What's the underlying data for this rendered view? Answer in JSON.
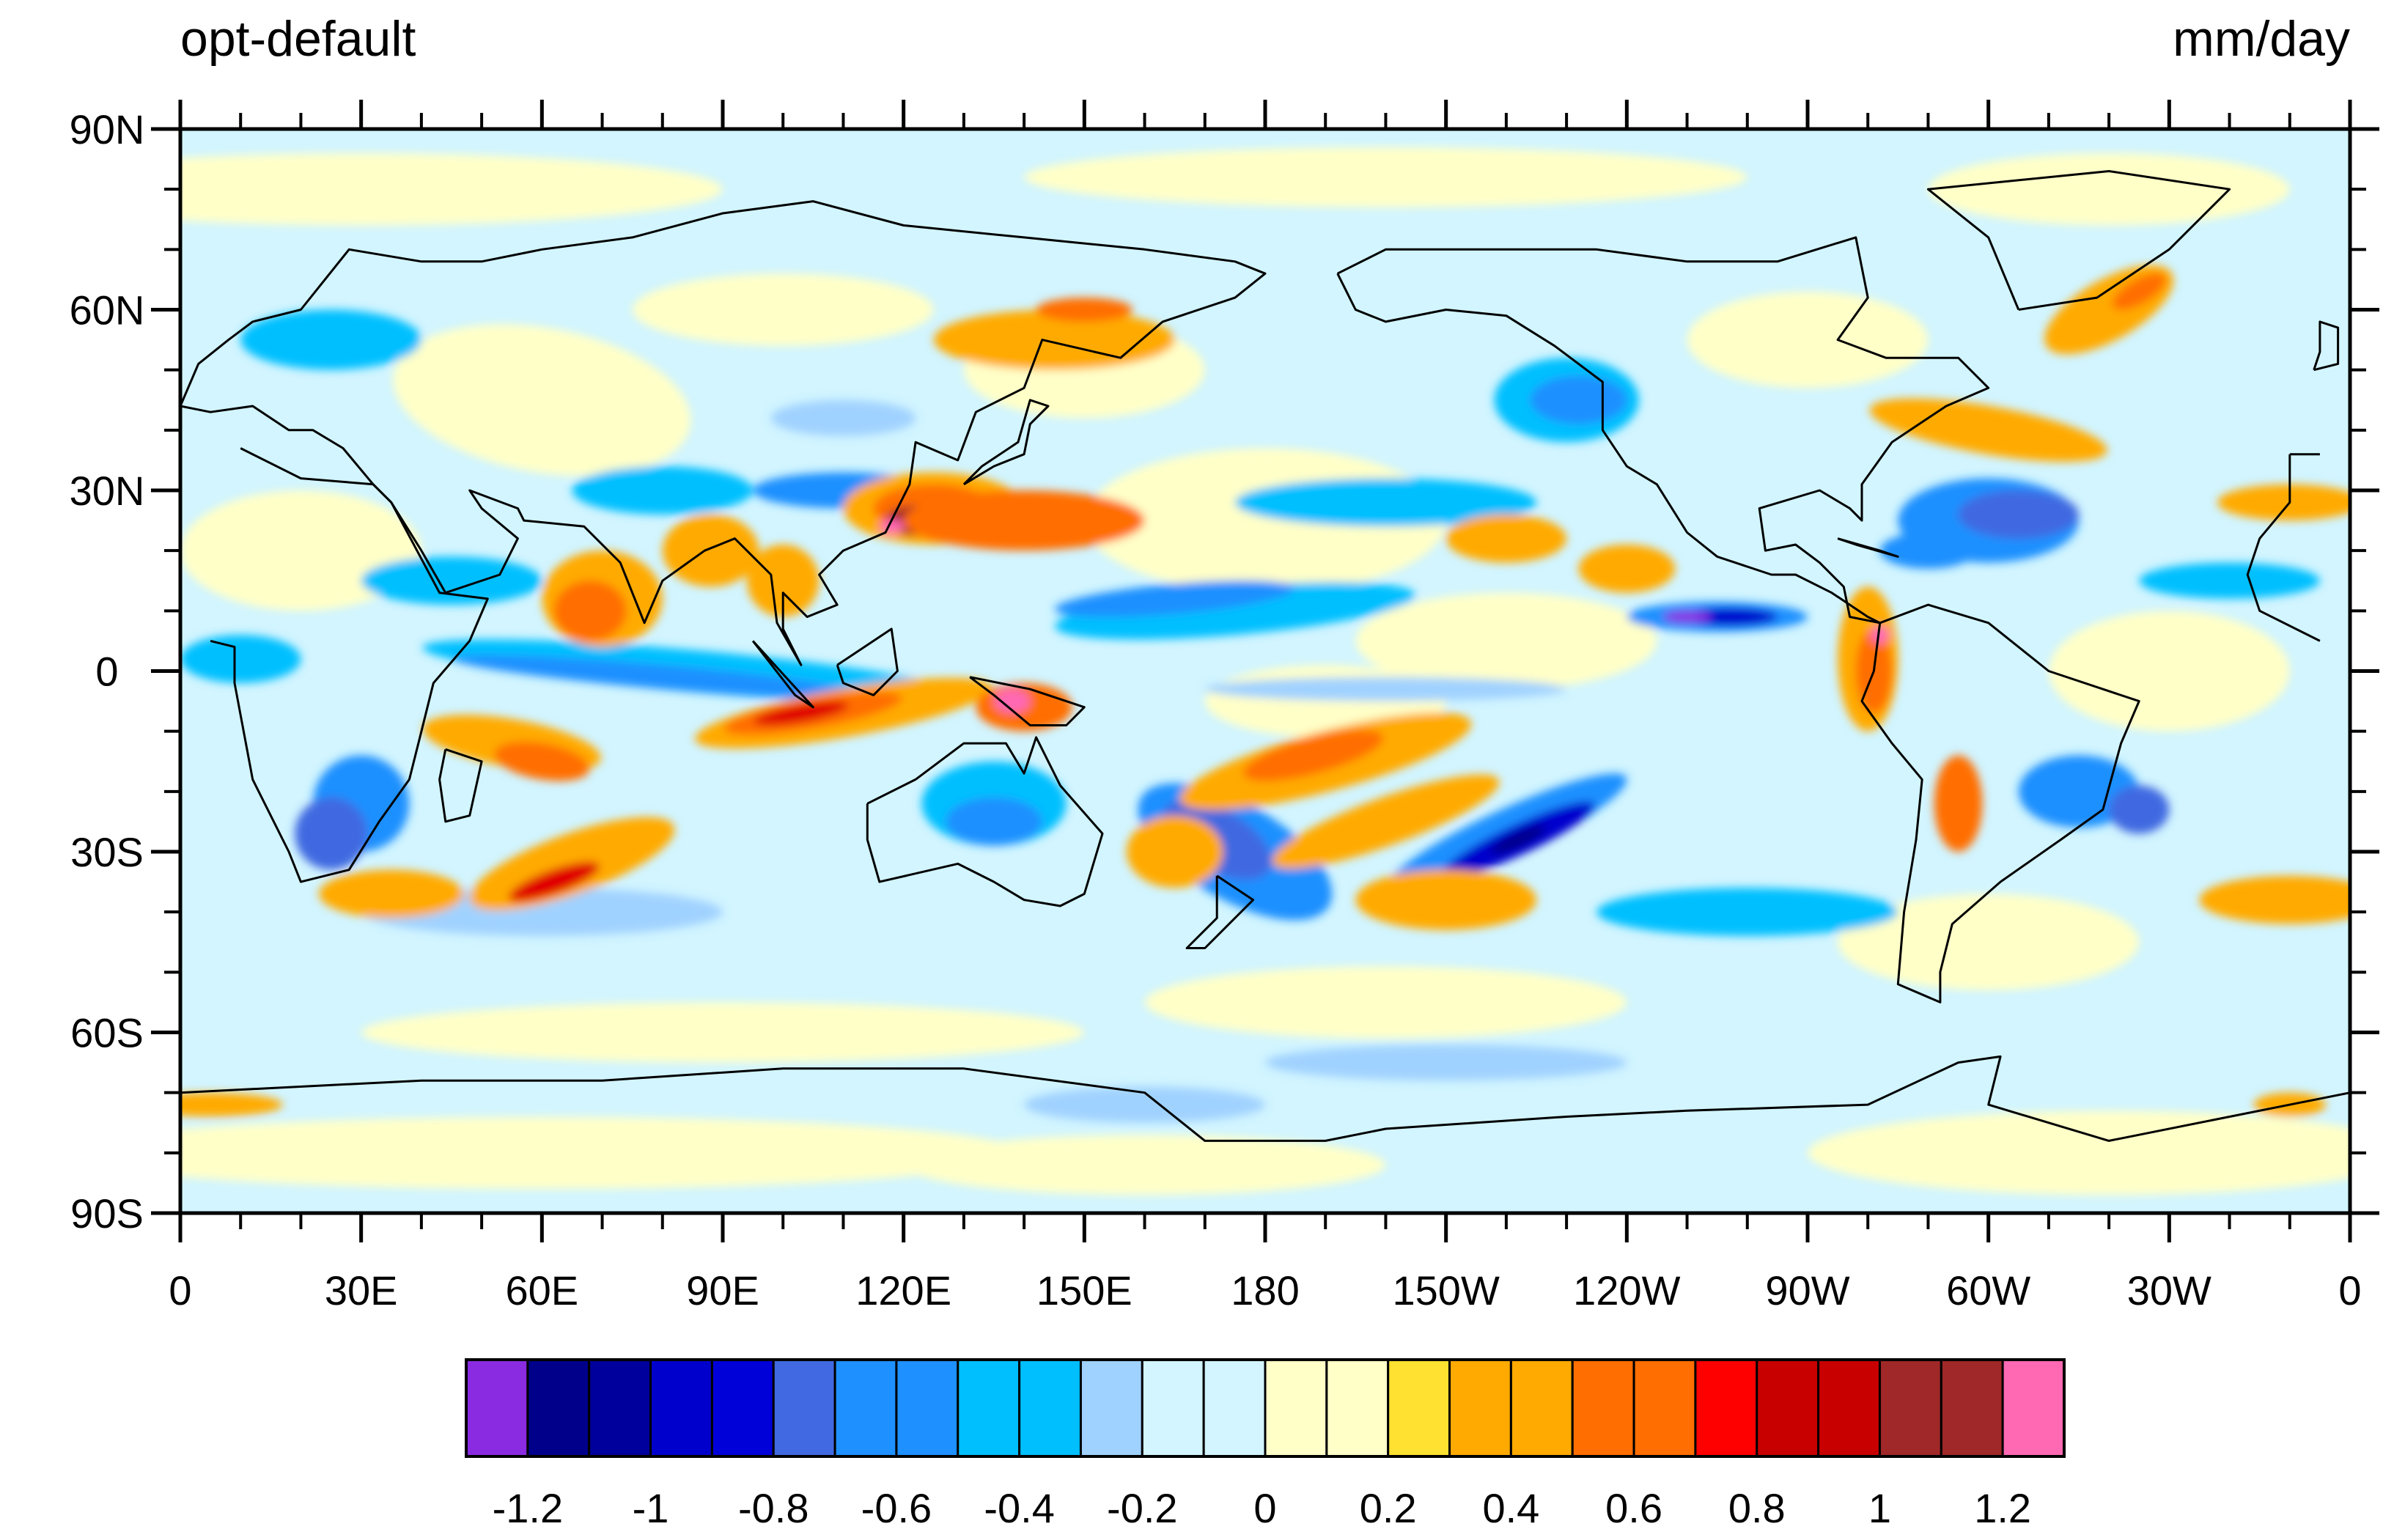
{
  "title_left": "opt-default",
  "title_right": "mm/day",
  "lat_labels": [
    "90N",
    "60N",
    "30N",
    "0",
    "30S",
    "60S",
    "90S"
  ],
  "lon_labels": [
    "0",
    "30E",
    "60E",
    "90E",
    "120E",
    "150E",
    "180",
    "150W",
    "120W",
    "90W",
    "60W",
    "30W",
    "0"
  ],
  "colorbar": {
    "colors": [
      "#8a2be2",
      "#00008b",
      "#00009c",
      "#0000cd",
      "#0000d8",
      "#4169e1",
      "#1e90ff",
      "#1e90ff",
      "#00bfff",
      "#00bfff",
      "#a0d2ff",
      "#d2f5ff",
      "#d2f5ff",
      "#ffffc8",
      "#ffffc8",
      "#ffe132",
      "#ffaa00",
      "#ffaa00",
      "#ff6e00",
      "#ff6e00",
      "#ff0000",
      "#c80000",
      "#c80000",
      "#a02828",
      "#a02828",
      "#ff69b4"
    ],
    "tick_labels": [
      "-1.2",
      "-1",
      "-0.8",
      "-0.6",
      "-0.4",
      "-0.2",
      "0",
      "0.2",
      "0.4",
      "0.6",
      "0.8",
      "1",
      "1.2"
    ]
  },
  "colors": {
    "background_field": "#d2f5ff",
    "coastline": "#000000"
  }
}
